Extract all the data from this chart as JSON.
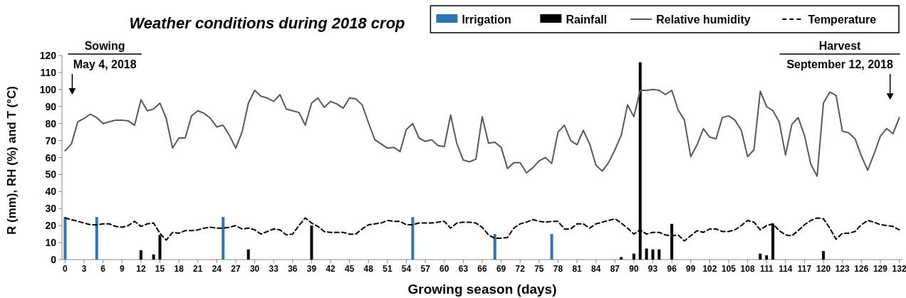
{
  "chart_data": {
    "type": "line",
    "title": "Weather conditions during 2018 crop",
    "xlabel": "Growing season (days)",
    "ylabel": "R (mm), RH (%) and T (°C)",
    "x": [
      0,
      1,
      2,
      3,
      4,
      5,
      6,
      7,
      8,
      9,
      10,
      11,
      12,
      13,
      14,
      15,
      16,
      17,
      18,
      19,
      20,
      21,
      22,
      23,
      24,
      25,
      26,
      27,
      28,
      29,
      30,
      31,
      32,
      33,
      34,
      35,
      36,
      37,
      38,
      39,
      40,
      41,
      42,
      43,
      44,
      45,
      46,
      47,
      48,
      49,
      50,
      51,
      52,
      53,
      54,
      55,
      56,
      57,
      58,
      59,
      60,
      61,
      62,
      63,
      64,
      65,
      66,
      67,
      68,
      69,
      70,
      71,
      72,
      73,
      74,
      75,
      76,
      77,
      78,
      79,
      80,
      81,
      82,
      83,
      84,
      85,
      86,
      87,
      88,
      89,
      90,
      91,
      92,
      93,
      94,
      95,
      96,
      97,
      98,
      99,
      100,
      101,
      102,
      103,
      104,
      105,
      106,
      107,
      108,
      109,
      110,
      111,
      112,
      113,
      114,
      115,
      116,
      117,
      118,
      119,
      120,
      121,
      122,
      123,
      124,
      125,
      126,
      127,
      128,
      129,
      130,
      131,
      132
    ],
    "series": [
      {
        "name": "Irrigation",
        "type": "bar",
        "color": "#2e75b6",
        "x": [
          0,
          5,
          25,
          55,
          68,
          77
        ],
        "values": [
          25,
          25,
          25,
          25,
          15,
          15
        ]
      },
      {
        "name": "Rainfall",
        "type": "bar",
        "color": "#000000",
        "x": [
          12,
          14,
          15,
          29,
          39,
          88,
          90,
          91,
          92,
          93,
          94,
          96,
          110,
          111,
          112,
          120
        ],
        "values": [
          5.5,
          3,
          14.5,
          6,
          20,
          1.5,
          3.5,
          116,
          6.5,
          6,
          6,
          21,
          3.5,
          2.5,
          21,
          5
        ]
      },
      {
        "name": "Relative humidity",
        "color": "#595959",
        "line_style": "solid",
        "values": [
          64,
          68,
          81,
          83,
          85.5,
          83.5,
          80,
          81,
          82,
          82,
          81.5,
          79,
          94,
          87.5,
          88.5,
          92,
          83,
          65.5,
          71.5,
          71.5,
          84.5,
          87.5,
          86,
          83,
          78,
          79,
          73,
          65.5,
          75,
          92,
          99.5,
          96,
          95,
          93,
          97,
          88.5,
          87.5,
          86.5,
          79,
          92,
          95,
          89.5,
          93,
          91.5,
          89,
          95,
          94.5,
          91,
          80.5,
          70.5,
          68,
          65.5,
          66,
          63.5,
          76.5,
          80,
          71.5,
          69.5,
          70.5,
          67,
          66.5,
          85,
          68,
          58.5,
          57.5,
          59,
          84,
          68.5,
          69,
          66,
          53.5,
          57,
          57,
          51,
          54,
          58,
          60,
          56.5,
          75,
          79,
          70,
          67.5,
          76,
          68,
          55.5,
          52,
          57,
          64.5,
          73,
          91,
          84,
          99.5,
          99.5,
          100,
          99.5,
          97,
          99.5,
          88,
          82,
          60.5,
          67.5,
          77,
          72,
          71,
          83.5,
          84.5,
          82,
          76,
          60.5,
          64.5,
          99,
          90,
          87.5,
          81,
          61.5,
          79.5,
          83.5,
          73,
          56,
          49,
          92,
          98.5,
          96.5,
          75.5,
          74.5,
          71,
          61,
          52.5,
          62,
          72.5,
          77,
          74,
          83.5
        ]
      },
      {
        "name": "Temperature",
        "color": "#000000",
        "line_style": "dashed",
        "values": [
          24.5,
          23.5,
          22.5,
          21.5,
          20.5,
          20.5,
          21,
          21,
          19.5,
          19,
          20,
          22.5,
          19.5,
          21,
          21.5,
          15.5,
          11.5,
          16,
          15.5,
          17,
          17,
          17.5,
          18.5,
          19,
          18.5,
          18.5,
          19,
          20,
          18,
          18.5,
          17.5,
          15,
          16.5,
          18,
          17.5,
          14.5,
          15,
          20,
          24.5,
          21.5,
          19.5,
          16.5,
          16,
          16,
          16,
          15,
          15,
          18,
          20.5,
          21,
          21.5,
          23,
          22.5,
          22.5,
          20.5,
          20.5,
          21.5,
          21.5,
          21.5,
          22,
          22.5,
          18.5,
          21.5,
          22,
          22,
          21.5,
          19,
          14.5,
          12.5,
          12.5,
          13,
          18.5,
          21,
          22,
          23.5,
          22.5,
          22,
          22.5,
          22.5,
          18,
          18,
          21,
          21,
          18.5,
          21,
          22,
          23,
          24,
          21.5,
          18.5,
          15,
          17.5,
          15,
          16,
          16,
          14.5,
          14,
          14.5,
          11,
          14,
          17,
          16,
          18,
          18,
          16.5,
          16.5,
          17.5,
          20,
          23,
          22,
          17.5,
          20,
          21,
          17,
          14.5,
          14,
          17,
          20.5,
          23,
          24.5,
          24,
          18.5,
          12,
          15.5,
          15.5,
          16.5,
          20.5,
          23,
          22,
          20.5,
          20,
          19.5,
          17.5
        ]
      }
    ],
    "xlim": [
      -0.5,
      132.5
    ],
    "xticks": [
      0,
      3,
      6,
      9,
      12,
      15,
      18,
      21,
      24,
      27,
      30,
      33,
      36,
      39,
      42,
      45,
      48,
      51,
      54,
      57,
      60,
      63,
      66,
      69,
      72,
      75,
      78,
      81,
      84,
      87,
      90,
      93,
      96,
      99,
      102,
      105,
      108,
      111,
      114,
      117,
      120,
      123,
      126,
      129,
      132
    ],
    "ylim": [
      0,
      120
    ],
    "yticks": [
      0,
      10,
      20,
      30,
      40,
      50,
      60,
      70,
      80,
      90,
      100,
      110,
      120
    ],
    "legend": "top right",
    "annotations": [
      "Sowing",
      "May 4, 2018",
      "Harvest",
      "September 12, 2018"
    ]
  }
}
